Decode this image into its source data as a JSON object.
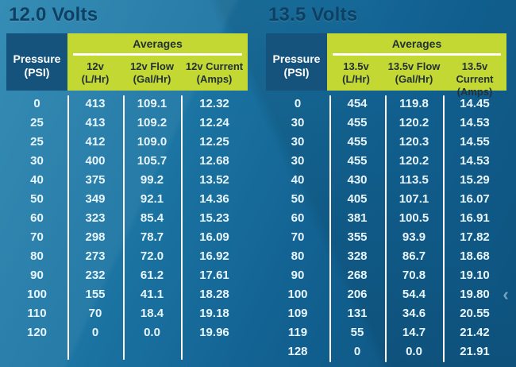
{
  "page": {
    "carousel_prev_icon": "‹"
  },
  "colors": {
    "background_top": "#2684af",
    "background_bottom": "#0e527d",
    "title_text": "#0d4062",
    "pressure_header_bg": "#15537d",
    "averages_bg": "#c3d832",
    "averages_text": "#22313a",
    "data_text": "#eaf6fd",
    "divider": "#ffffff"
  },
  "chart_data": [
    {
      "type": "table",
      "title": "12.0 Volts",
      "header": {
        "pressure_line1": "Pressure",
        "pressure_line2": "(PSI)",
        "group_label": "Averages",
        "columns": [
          {
            "line1": "12v",
            "line2": "(L/Hr)"
          },
          {
            "line1": "12v Flow",
            "line2": "(Gal/Hr)"
          },
          {
            "line1": "12v Current",
            "line2": "(Amps)"
          }
        ]
      },
      "rows": [
        [
          "0",
          "413",
          "109.1",
          "12.32"
        ],
        [
          "25",
          "413",
          "109.2",
          "12.24"
        ],
        [
          "25",
          "412",
          "109.0",
          "12.25"
        ],
        [
          "30",
          "400",
          "105.7",
          "12.68"
        ],
        [
          "40",
          "375",
          "99.2",
          "13.52"
        ],
        [
          "50",
          "349",
          "92.1",
          "14.36"
        ],
        [
          "60",
          "323",
          "85.4",
          "15.23"
        ],
        [
          "70",
          "298",
          "78.7",
          "16.09"
        ],
        [
          "80",
          "273",
          "72.0",
          "16.92"
        ],
        [
          "90",
          "232",
          "61.2",
          "17.61"
        ],
        [
          "100",
          "155",
          "41.1",
          "18.28"
        ],
        [
          "110",
          "70",
          "18.4",
          "19.18"
        ],
        [
          "120",
          "0",
          "0.0",
          "19.96"
        ]
      ]
    },
    {
      "type": "table",
      "title": "13.5 Volts",
      "header": {
        "pressure_line1": "Pressure",
        "pressure_line2": "(PSI)",
        "group_label": "Averages",
        "columns": [
          {
            "line1": "13.5v",
            "line2": "(L/Hr)"
          },
          {
            "line1": "13.5v Flow",
            "line2": "(Gal/Hr)"
          },
          {
            "line1": "13.5v Current",
            "line2": "(Amps)"
          }
        ]
      },
      "rows": [
        [
          "0",
          "454",
          "119.8",
          "14.45"
        ],
        [
          "30",
          "455",
          "120.2",
          "14.53"
        ],
        [
          "30",
          "455",
          "120.3",
          "14.55"
        ],
        [
          "30",
          "455",
          "120.2",
          "14.53"
        ],
        [
          "40",
          "430",
          "113.5",
          "15.29"
        ],
        [
          "50",
          "405",
          "107.1",
          "16.07"
        ],
        [
          "60",
          "381",
          "100.5",
          "16.91"
        ],
        [
          "70",
          "355",
          "93.9",
          "17.82"
        ],
        [
          "80",
          "328",
          "86.7",
          "18.68"
        ],
        [
          "90",
          "268",
          "70.8",
          "19.10"
        ],
        [
          "100",
          "206",
          "54.4",
          "19.80"
        ],
        [
          "109",
          "131",
          "34.6",
          "20.55"
        ],
        [
          "119",
          "55",
          "14.7",
          "21.42"
        ],
        [
          "128",
          "0",
          "0.0",
          "21.91"
        ]
      ]
    }
  ]
}
